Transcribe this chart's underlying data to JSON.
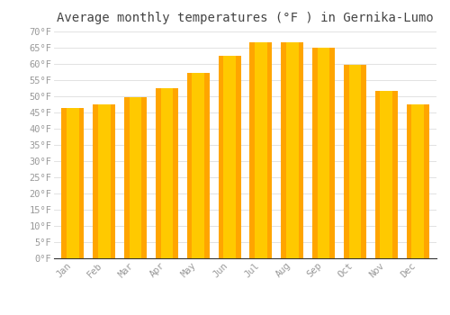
{
  "title": "Average monthly temperatures (°F ) in Gernika-Lumo",
  "months": [
    "Jan",
    "Feb",
    "Mar",
    "Apr",
    "May",
    "Jun",
    "Jul",
    "Aug",
    "Sep",
    "Oct",
    "Nov",
    "Dec"
  ],
  "values": [
    46.4,
    47.5,
    49.8,
    52.5,
    57.2,
    62.6,
    66.6,
    66.6,
    65.0,
    59.7,
    51.6,
    47.5
  ],
  "bar_color": "#FFA500",
  "bar_highlight": "#FFD000",
  "ylim": [
    0,
    70
  ],
  "yticks": [
    0,
    5,
    10,
    15,
    20,
    25,
    30,
    35,
    40,
    45,
    50,
    55,
    60,
    65,
    70
  ],
  "ytick_labels": [
    "0°F",
    "5°F",
    "10°F",
    "15°F",
    "20°F",
    "25°F",
    "30°F",
    "35°F",
    "40°F",
    "45°F",
    "50°F",
    "55°F",
    "60°F",
    "65°F",
    "70°F"
  ],
  "background_color": "#ffffff",
  "grid_color": "#dddddd",
  "title_fontsize": 10,
  "tick_fontsize": 7.5,
  "tick_color": "#999999",
  "font_family": "monospace",
  "spine_color": "#333333"
}
